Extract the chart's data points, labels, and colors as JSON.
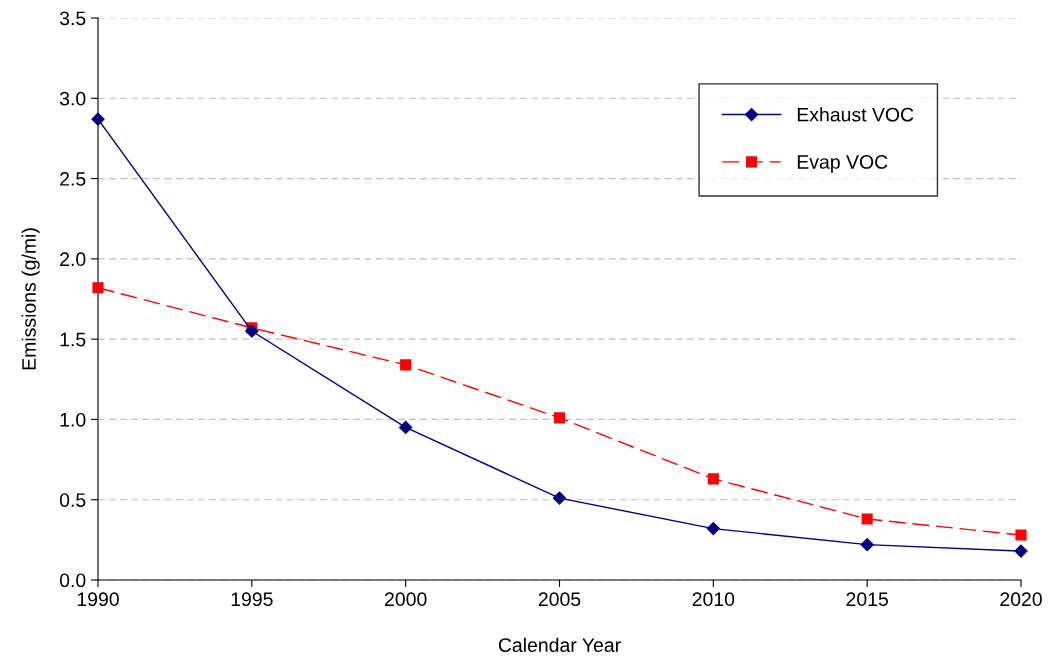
{
  "chart_data": {
    "type": "line",
    "xlabel": "Calendar Year",
    "ylabel": "Emissions (g/mi)",
    "x": [
      1990,
      1995,
      2000,
      2005,
      2010,
      2015,
      2020
    ],
    "series": [
      {
        "name": "Exhaust VOC",
        "color": "#000080",
        "marker": "diamond",
        "line_style": "solid",
        "values": [
          2.87,
          1.55,
          0.95,
          0.51,
          0.32,
          0.22,
          0.18
        ]
      },
      {
        "name": "Evap VOC",
        "color": "#ff0000",
        "marker": "square",
        "line_style": "dashed",
        "values": [
          1.82,
          1.57,
          1.34,
          1.01,
          0.63,
          0.38,
          0.28
        ]
      }
    ],
    "xlim": [
      1990,
      2020
    ],
    "xticks": [
      1990,
      1995,
      2000,
      2005,
      2010,
      2015,
      2020
    ],
    "ylim": [
      0,
      3.5
    ],
    "yticks": [
      {
        "value": 0,
        "label": "0.0"
      },
      {
        "value": 0.5,
        "label": "0.5"
      },
      {
        "value": 1,
        "label": "1.0"
      },
      {
        "value": 1.5,
        "label": "1.5"
      },
      {
        "value": 2,
        "label": "2.0"
      },
      {
        "value": 2.5,
        "label": "2.5"
      },
      {
        "value": 3,
        "label": "3.0"
      },
      {
        "value": 3.5,
        "label": "3.5"
      }
    ],
    "grid": "y",
    "legend": "top right"
  }
}
